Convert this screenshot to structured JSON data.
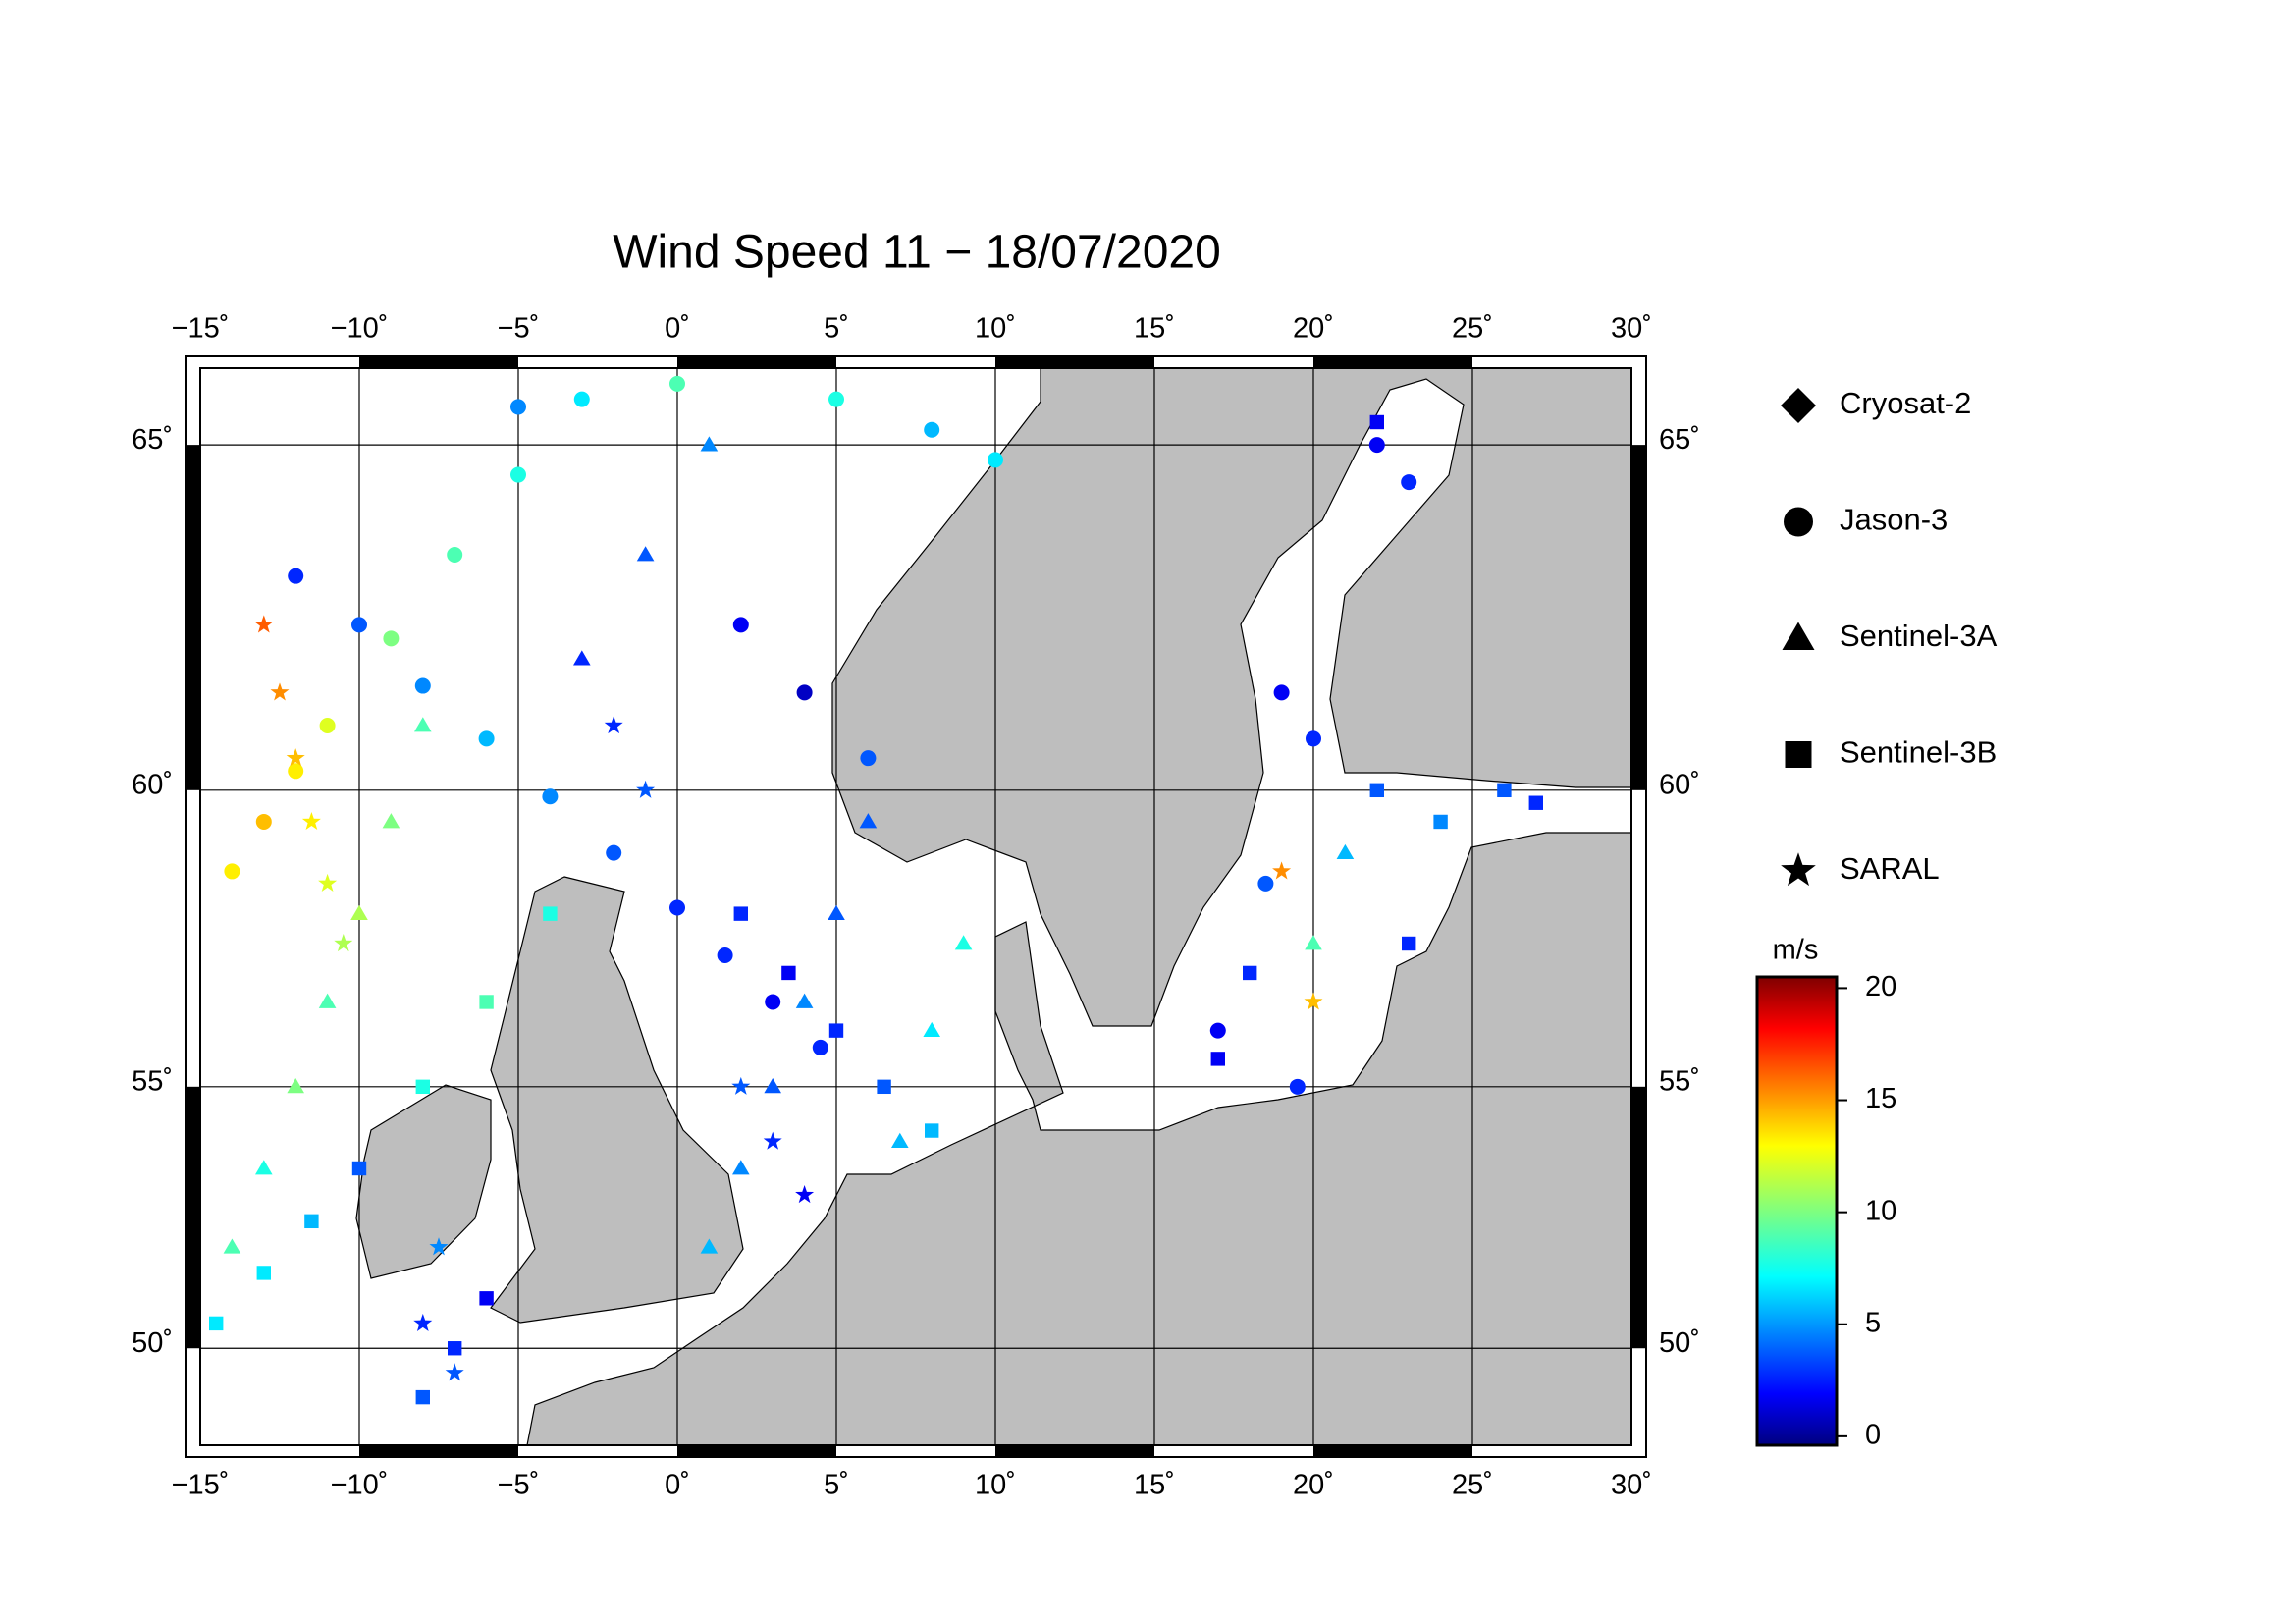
{
  "chart_data": {
    "type": "scatter",
    "projection": "mercator",
    "title": "Wind Speed 11 − 18/07/2020",
    "xlim": [
      -15,
      30
    ],
    "ylim": [
      48,
      66
    ],
    "xticks": [
      {
        "value": -15,
        "label": "−15˚"
      },
      {
        "value": -10,
        "label": "−10˚"
      },
      {
        "value": -5,
        "label": "−5˚"
      },
      {
        "value": 0,
        "label": "0˚"
      },
      {
        "value": 5,
        "label": "5˚"
      },
      {
        "value": 10,
        "label": "10˚"
      },
      {
        "value": 15,
        "label": "15˚"
      },
      {
        "value": 20,
        "label": "20˚"
      },
      {
        "value": 25,
        "label": "25˚"
      },
      {
        "value": 30,
        "label": "30˚"
      }
    ],
    "yticks": [
      {
        "value": 50,
        "label": "50˚"
      },
      {
        "value": 55,
        "label": "55˚"
      },
      {
        "value": 60,
        "label": "60˚"
      },
      {
        "value": 65,
        "label": "65˚"
      }
    ],
    "grid": true,
    "colormap": "jet",
    "colorbar_label": "m/s",
    "clim": [
      -0.4,
      20.5
    ],
    "colorbar_ticks": [
      0,
      5,
      10,
      15,
      20
    ],
    "series": [
      {
        "name": "Cryosat-2",
        "marker": "diamond",
        "x": [],
        "y": [],
        "values": []
      },
      {
        "name": "Jason-3",
        "marker": "circle",
        "x": [
          -12,
          -10,
          -8,
          -6,
          -4,
          -2,
          0,
          1.5,
          3,
          4.5,
          -14,
          -13,
          -12,
          -11,
          -9,
          -7,
          -5,
          -3,
          2,
          4,
          6,
          19,
          20,
          18.5,
          17,
          19.5,
          22,
          23,
          -5,
          0,
          5,
          8,
          10
        ],
        "y": [
          63.2,
          62.5,
          61.6,
          60.8,
          59.9,
          59.0,
          58.1,
          57.3,
          56.5,
          55.7,
          58.7,
          59.5,
          60.3,
          61.0,
          62.3,
          63.5,
          64.6,
          65.6,
          62.5,
          61.5,
          60.5,
          61.5,
          60.8,
          58.5,
          56,
          55,
          65,
          64.5,
          65.5,
          65.8,
          65.6,
          65.2,
          64.8
        ],
        "values": [
          3,
          4,
          5,
          6,
          5,
          4,
          3,
          3,
          2,
          3,
          13,
          14,
          13,
          12,
          10,
          9,
          8,
          7,
          2,
          1,
          4,
          2,
          3,
          4,
          2,
          3,
          2,
          3,
          5,
          9,
          8,
          6,
          7
        ]
      },
      {
        "name": "Sentinel-3A",
        "marker": "triangle",
        "x": [
          -14,
          -13,
          -12,
          -11,
          -10,
          -9,
          -8,
          1,
          2,
          3,
          4,
          5,
          6,
          7,
          8,
          9,
          -3,
          -1,
          1,
          20,
          21
        ],
        "y": [
          52,
          53.5,
          55,
          56.5,
          58,
          59.5,
          61,
          52,
          53.5,
          55,
          56.5,
          58,
          59.5,
          54,
          56,
          57.5,
          62,
          63.5,
          65,
          57.5,
          59
        ],
        "values": [
          9,
          8,
          10,
          9,
          11,
          10,
          9,
          6,
          5,
          4,
          5,
          4,
          4,
          6,
          7,
          8,
          3,
          4,
          5,
          9,
          6
        ]
      },
      {
        "name": "Sentinel-3B",
        "marker": "square",
        "x": [
          -14.5,
          -13,
          -11.5,
          -10,
          -8,
          -6,
          -4,
          2,
          3.5,
          5,
          6.5,
          8,
          -6,
          -7,
          -8,
          22,
          24,
          26,
          27,
          18,
          17,
          23,
          22
        ],
        "y": [
          50.5,
          51.5,
          52.5,
          53.5,
          55,
          56.5,
          58,
          58,
          57,
          56,
          55,
          54.2,
          51,
          50,
          49,
          60,
          59.5,
          60,
          59.8,
          57,
          55.5,
          57.5,
          65.3
        ],
        "values": [
          7,
          7,
          6,
          4,
          8,
          9,
          8,
          3,
          2,
          3,
          4,
          6,
          2,
          3,
          4,
          4,
          5,
          4,
          3,
          3,
          2,
          3,
          2
        ]
      },
      {
        "name": "SARAL",
        "marker": "star",
        "x": [
          -13,
          -12.5,
          -12,
          -11.5,
          -11,
          -10.5,
          -8,
          -7,
          -7.5,
          2,
          3,
          4,
          -2,
          -1,
          19,
          20
        ],
        "y": [
          62.5,
          61.5,
          60.5,
          59.5,
          58.5,
          57.5,
          50.5,
          49.5,
          52,
          55,
          54,
          53,
          61,
          60,
          58.7,
          56.5
        ],
        "values": [
          16,
          15,
          14,
          13,
          12,
          11,
          3,
          4,
          5,
          4,
          3,
          2,
          3,
          4,
          15,
          14
        ]
      }
    ]
  }
}
